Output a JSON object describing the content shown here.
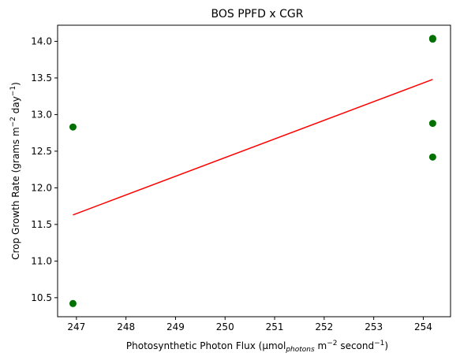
{
  "chart_data": {
    "type": "scatter",
    "title": "BOS PPFD x CGR",
    "xlabel": {
      "main": "Photosynthetic Photon Flux (μmol",
      "sub": "photons",
      "mid": " m",
      "sup1": "−2",
      "mid2": " second",
      "sup2": "−1",
      "end": ")"
    },
    "ylabel": {
      "main": "Crop Growth Rate (grams m",
      "sup1": "−2",
      "mid": " day",
      "sup2": "−1",
      "end": ")"
    },
    "xlim": [
      246.62,
      254.55
    ],
    "ylim": [
      10.24,
      14.22
    ],
    "xticks": [
      247,
      248,
      249,
      250,
      251,
      252,
      253,
      254
    ],
    "xtick_labels": [
      "247",
      "248",
      "249",
      "250",
      "251",
      "252",
      "253",
      "254"
    ],
    "yticks": [
      10.5,
      11.0,
      11.5,
      12.0,
      12.5,
      13.0,
      13.5,
      14.0
    ],
    "ytick_labels": [
      "10.5",
      "11.0",
      "11.5",
      "12.0",
      "12.5",
      "13.0",
      "13.5",
      "14.0"
    ],
    "points": [
      {
        "x": 246.93,
        "y": 12.83
      },
      {
        "x": 246.93,
        "y": 10.42
      },
      {
        "x": 254.19,
        "y": 14.03
      },
      {
        "x": 254.19,
        "y": 14.04
      },
      {
        "x": 254.19,
        "y": 12.88
      },
      {
        "x": 254.19,
        "y": 12.42
      }
    ],
    "fit_line": {
      "x": [
        246.93,
        254.19
      ],
      "y": [
        11.63,
        13.48
      ]
    },
    "point_color": "#007000",
    "line_color": "#ff0000",
    "grid": false
  }
}
